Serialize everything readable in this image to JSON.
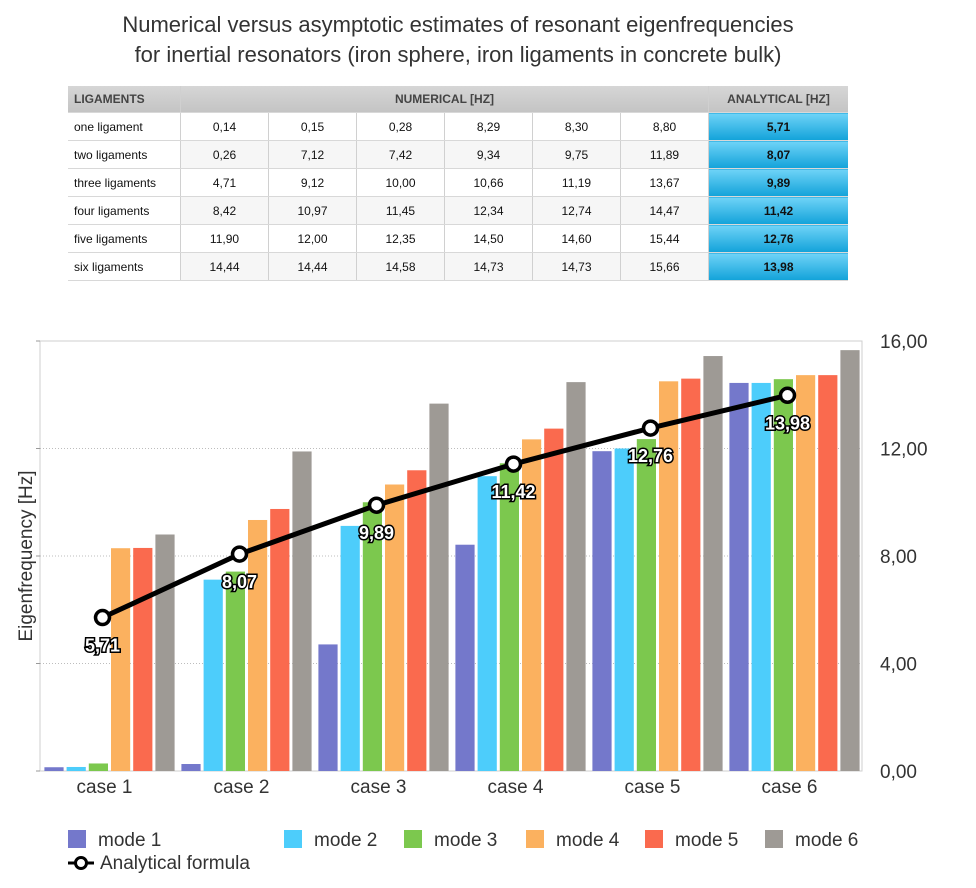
{
  "title": {
    "line1": "Numerical versus asymptotic estimates of resonant eigenfrequencies",
    "line2": "for inertial resonators (iron sphere, iron ligaments in concrete bulk)"
  },
  "table": {
    "headers": {
      "ligaments": "LIGAMENTS",
      "numerical": "NUMERICAL [HZ]",
      "analytical": "ANALYTICAL [HZ]"
    },
    "rows": [
      {
        "label": "one ligament",
        "values": [
          "0,14",
          "0,15",
          "0,28",
          "8,29",
          "8,30",
          "8,80"
        ],
        "analytical": "5,71"
      },
      {
        "label": "two ligaments",
        "values": [
          "0,26",
          "7,12",
          "7,42",
          "9,34",
          "9,75",
          "11,89"
        ],
        "analytical": "8,07"
      },
      {
        "label": "three ligaments",
        "values": [
          "4,71",
          "9,12",
          "10,00",
          "10,66",
          "11,19",
          "13,67"
        ],
        "analytical": "9,89"
      },
      {
        "label": "four ligaments",
        "values": [
          "8,42",
          "10,97",
          "11,45",
          "12,34",
          "12,74",
          "14,47"
        ],
        "analytical": "11,42"
      },
      {
        "label": "five ligaments",
        "values": [
          "11,90",
          "12,00",
          "12,35",
          "14,50",
          "14,60",
          "15,44"
        ],
        "analytical": "12,76"
      },
      {
        "label": "six ligaments",
        "values": [
          "14,44",
          "14,44",
          "14,58",
          "14,73",
          "14,73",
          "15,66"
        ],
        "analytical": "13,98"
      }
    ]
  },
  "chart_data": {
    "type": "bar",
    "ylabel": "Eigenfrequency [Hz]",
    "ylim": [
      0,
      16
    ],
    "yticks": [
      "0,00",
      "4,00",
      "8,00",
      "12,00",
      "16,00"
    ],
    "ytick_values": [
      0,
      4,
      8,
      12,
      16
    ],
    "categories": [
      "case 1",
      "case 2",
      "case 3",
      "case 4",
      "case 5",
      "case 6"
    ],
    "series": [
      {
        "name": "mode 1",
        "color": "#7478cb",
        "values": [
          0.14,
          0.26,
          4.71,
          8.42,
          11.9,
          14.44
        ]
      },
      {
        "name": "mode 2",
        "color": "#4dcdfb",
        "values": [
          0.15,
          7.12,
          9.12,
          10.97,
          12.0,
          14.44
        ]
      },
      {
        "name": "mode 3",
        "color": "#7cc84e",
        "values": [
          0.28,
          7.42,
          10.0,
          11.45,
          12.35,
          14.58
        ]
      },
      {
        "name": "mode 4",
        "color": "#fbb15f",
        "values": [
          8.29,
          9.34,
          10.66,
          12.34,
          14.5,
          14.73
        ]
      },
      {
        "name": "mode 5",
        "color": "#fa6a4e",
        "values": [
          8.3,
          9.75,
          11.19,
          12.74,
          14.6,
          14.73
        ]
      },
      {
        "name": "mode 6",
        "color": "#9e9a95",
        "values": [
          8.8,
          11.89,
          13.67,
          14.47,
          15.44,
          15.66
        ]
      }
    ],
    "line": {
      "name": "Analytical formula",
      "color": "#000000",
      "values": [
        5.71,
        8.07,
        9.89,
        11.42,
        12.76,
        13.98
      ],
      "labels": [
        "5,71",
        "8,07",
        "9,89",
        "11,42",
        "12,76",
        "13,98"
      ]
    },
    "legend_position": "bottom"
  }
}
